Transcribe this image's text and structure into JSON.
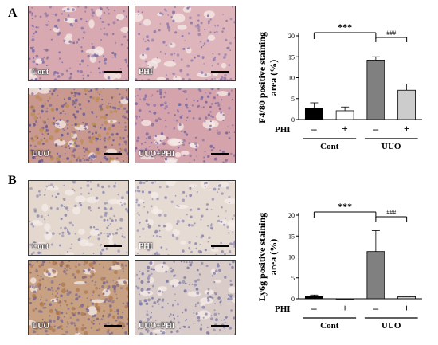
{
  "panels": [
    {
      "letter": "A",
      "images": [
        {
          "label": "Cont",
          "tone": "#d8a9b0",
          "cell": "#7e6fa6",
          "density": 0.55
        },
        {
          "label": "PHI",
          "tone": "#ddb5bb",
          "cell": "#8a78ad",
          "density": 0.45
        },
        {
          "label": "UUO",
          "tone": "#c9998f",
          "cell": "#6a5b93",
          "density": 1.0
        },
        {
          "label": "UUO+PHI",
          "tone": "#d5a3ac",
          "cell": "#7a6aa0",
          "density": 0.7
        }
      ]
    },
    {
      "letter": "B",
      "images": [
        {
          "label": "Cont",
          "tone": "#e4d7ce",
          "cell": "#8d8bb0",
          "density": 0.5
        },
        {
          "label": "PHI",
          "tone": "#e6dbd3",
          "cell": "#8f8bb1",
          "density": 0.5
        },
        {
          "label": "UUO",
          "tone": "#c8a183",
          "cell": "#7e6a8e",
          "density": 1.0
        },
        {
          "label": "UUO+PHI",
          "tone": "#d9ccc8",
          "cell": "#7f7ca8",
          "density": 0.75
        }
      ]
    }
  ],
  "chart_data": [
    {
      "type": "bar",
      "ylabel": "F4/80 positive staining area (%)",
      "ylim": [
        0,
        20
      ],
      "yticks": [
        0,
        5,
        10,
        15,
        20
      ],
      "factor_label": "PHI",
      "bars": [
        {
          "phi": "–",
          "value": 2.7,
          "error": 1.3,
          "color": "#000000"
        },
        {
          "phi": "+",
          "value": 2.1,
          "error": 0.9,
          "color": "#ffffff"
        },
        {
          "phi": "–",
          "value": 14.2,
          "error": 0.8,
          "color": "#808080"
        },
        {
          "phi": "+",
          "value": 7.0,
          "error": 1.5,
          "color": "#cccccc"
        }
      ],
      "groups": [
        "Cont",
        "UUO"
      ],
      "annotations": [
        {
          "text": "***",
          "from": 0,
          "to": 2
        },
        {
          "text": "###",
          "from": 2,
          "to": 3
        }
      ]
    },
    {
      "type": "bar",
      "ylabel": "Ly6g positive staining area (%)",
      "ylim": [
        0,
        20
      ],
      "yticks": [
        0,
        5,
        10,
        15,
        20
      ],
      "factor_label": "PHI",
      "bars": [
        {
          "phi": "–",
          "value": 0.5,
          "error": 0.4,
          "color": "#000000"
        },
        {
          "phi": "+",
          "value": 0.0,
          "error": 0.0,
          "color": "#ffffff"
        },
        {
          "phi": "–",
          "value": 11.3,
          "error": 5.0,
          "color": "#808080"
        },
        {
          "phi": "+",
          "value": 0.5,
          "error": 0.1,
          "color": "#cccccc"
        }
      ],
      "groups": [
        "Cont",
        "UUO"
      ],
      "annotations": [
        {
          "text": "***",
          "from": 0,
          "to": 2
        },
        {
          "text": "###",
          "from": 2,
          "to": 3
        }
      ]
    }
  ]
}
